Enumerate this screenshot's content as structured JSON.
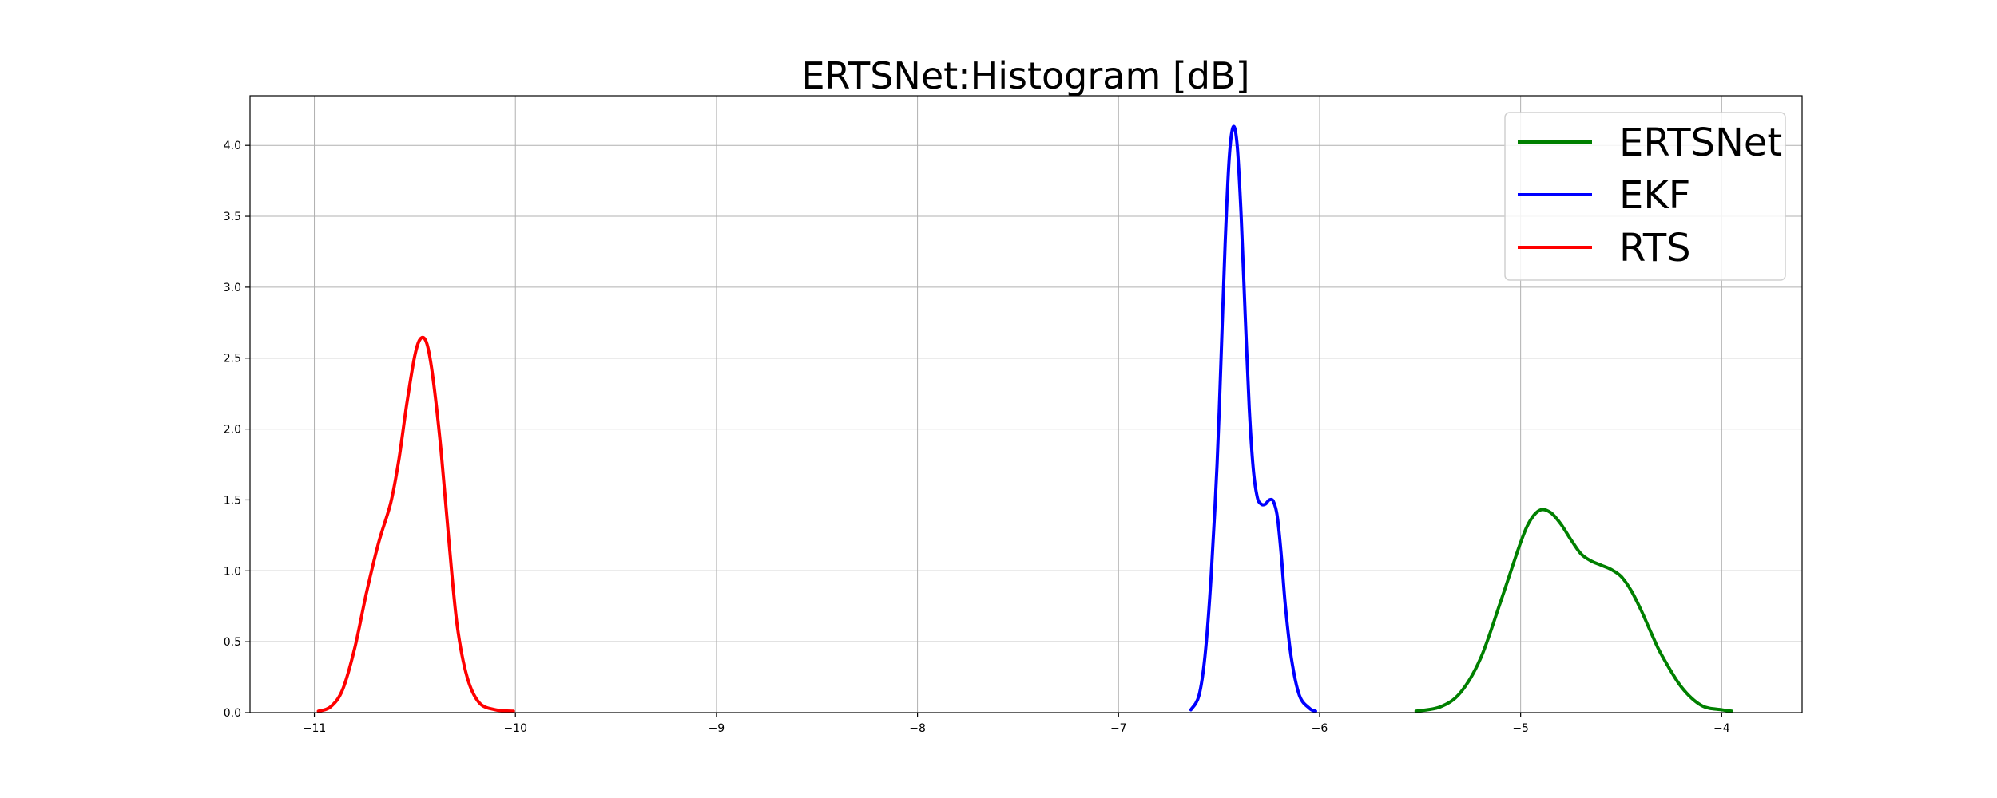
{
  "chart_data": {
    "type": "line",
    "title": "ERTSNet:Histogram [dB]",
    "xlabel": "",
    "ylabel": "",
    "xlim": [
      -11.32,
      -3.6
    ],
    "ylim": [
      0,
      4.35
    ],
    "x_ticks": [
      -11,
      -10,
      -9,
      -8,
      -7,
      -6,
      -5,
      -4
    ],
    "x_tick_labels": [
      "−11",
      "−10",
      "−9",
      "−8",
      "−7",
      "−6",
      "−5",
      "−4"
    ],
    "y_ticks": [
      0.0,
      0.5,
      1.0,
      1.5,
      2.0,
      2.5,
      3.0,
      3.5,
      4.0
    ],
    "y_tick_labels": [
      "0.0",
      "0.5",
      "1.0",
      "1.5",
      "2.0",
      "2.5",
      "3.0",
      "3.5",
      "4.0"
    ],
    "grid": true,
    "legend_position": "top-right",
    "series": [
      {
        "name": "ERTSNet",
        "color": "#008000",
        "points": [
          [
            -5.52,
            0.01
          ],
          [
            -5.4,
            0.04
          ],
          [
            -5.3,
            0.14
          ],
          [
            -5.2,
            0.38
          ],
          [
            -5.1,
            0.78
          ],
          [
            -5.0,
            1.2
          ],
          [
            -4.95,
            1.36
          ],
          [
            -4.9,
            1.43
          ],
          [
            -4.85,
            1.41
          ],
          [
            -4.8,
            1.33
          ],
          [
            -4.75,
            1.22
          ],
          [
            -4.7,
            1.12
          ],
          [
            -4.65,
            1.07
          ],
          [
            -4.6,
            1.04
          ],
          [
            -4.55,
            1.01
          ],
          [
            -4.5,
            0.96
          ],
          [
            -4.45,
            0.86
          ],
          [
            -4.4,
            0.72
          ],
          [
            -4.35,
            0.56
          ],
          [
            -4.3,
            0.41
          ],
          [
            -4.2,
            0.18
          ],
          [
            -4.1,
            0.05
          ],
          [
            -4.0,
            0.02
          ],
          [
            -3.95,
            0.01
          ]
        ]
      },
      {
        "name": "EKF",
        "color": "#0000ff",
        "points": [
          [
            -6.64,
            0.02
          ],
          [
            -6.6,
            0.12
          ],
          [
            -6.57,
            0.4
          ],
          [
            -6.54,
            0.95
          ],
          [
            -6.51,
            1.75
          ],
          [
            -6.49,
            2.5
          ],
          [
            -6.47,
            3.3
          ],
          [
            -6.45,
            3.9
          ],
          [
            -6.43,
            4.13
          ],
          [
            -6.41,
            4.0
          ],
          [
            -6.39,
            3.5
          ],
          [
            -6.37,
            2.8
          ],
          [
            -6.35,
            2.15
          ],
          [
            -6.33,
            1.72
          ],
          [
            -6.31,
            1.52
          ],
          [
            -6.29,
            1.47
          ],
          [
            -6.27,
            1.47
          ],
          [
            -6.25,
            1.5
          ],
          [
            -6.23,
            1.49
          ],
          [
            -6.21,
            1.38
          ],
          [
            -6.19,
            1.1
          ],
          [
            -6.17,
            0.75
          ],
          [
            -6.14,
            0.38
          ],
          [
            -6.1,
            0.12
          ],
          [
            -6.05,
            0.03
          ],
          [
            -6.02,
            0.01
          ]
        ]
      },
      {
        "name": "RTS",
        "color": "#ff0000",
        "points": [
          [
            -10.98,
            0.01
          ],
          [
            -10.92,
            0.04
          ],
          [
            -10.86,
            0.16
          ],
          [
            -10.8,
            0.45
          ],
          [
            -10.74,
            0.85
          ],
          [
            -10.68,
            1.2
          ],
          [
            -10.62,
            1.48
          ],
          [
            -10.58,
            1.78
          ],
          [
            -10.54,
            2.18
          ],
          [
            -10.5,
            2.52
          ],
          [
            -10.47,
            2.64
          ],
          [
            -10.44,
            2.6
          ],
          [
            -10.41,
            2.36
          ],
          [
            -10.37,
            1.85
          ],
          [
            -10.33,
            1.2
          ],
          [
            -10.29,
            0.62
          ],
          [
            -10.24,
            0.25
          ],
          [
            -10.18,
            0.07
          ],
          [
            -10.1,
            0.02
          ],
          [
            -10.01,
            0.01
          ]
        ]
      }
    ]
  }
}
